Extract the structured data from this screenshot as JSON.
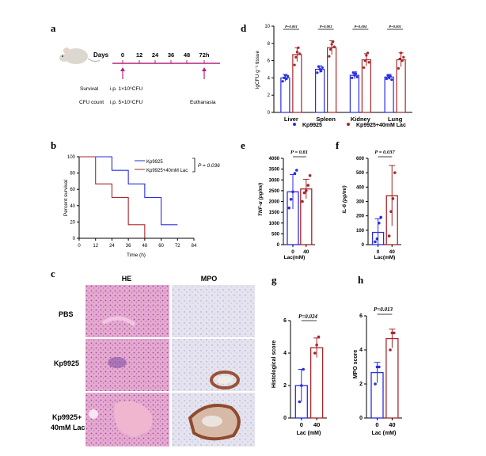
{
  "panels": {
    "a": {
      "letter": "a",
      "days_label": "Days",
      "days": [
        "0",
        "12",
        "24",
        "36",
        "48",
        "72h"
      ],
      "survival_label": "Survival",
      "survival_dose": "i.p.  1×10⁶CFU",
      "cfu_label": "CFU count",
      "cfu_dose": "i.p.  5×10⁵CFU",
      "euthanasia_label": "Euthanasia"
    },
    "b": {
      "letter": "b",
      "ylabel": "Percent survival",
      "xlabel": "Time (h)",
      "p_value": "P = 0.036",
      "legend": [
        "Kp9925",
        "Kp9925+40mM Lac"
      ],
      "x_ticks": [
        "0",
        "12",
        "24",
        "36",
        "48",
        "60",
        "72",
        "84"
      ],
      "y_ticks": [
        "0",
        "20",
        "40",
        "60",
        "80",
        "100"
      ]
    },
    "c": {
      "letter": "c",
      "col_he": "HE",
      "col_mpo": "MPO",
      "row_pbs": "PBS",
      "row_kp": "Kp9925",
      "row_lac_1": "Kp9925+",
      "row_lac_2": "40mM Lac"
    },
    "d": {
      "letter": "d",
      "ylabel": "lgCFU g⁻¹ tissue",
      "legend": [
        "Kp9925",
        "Kp9925+40mM Lac"
      ]
    },
    "e": {
      "letter": "e",
      "ylabel": "TNF-α (pg/ml)",
      "xlabel": "Lac(mM)",
      "p_value": "P = 0.81"
    },
    "f": {
      "letter": "f",
      "ylabel": "IL-6 (pg/ml)",
      "xlabel": "Lac(mM)",
      "p_value": "P = 0.037"
    },
    "g": {
      "letter": "g",
      "ylabel": "Histological score",
      "xlabel": "Lac (mM)",
      "p_value": "P=0.024"
    },
    "h": {
      "letter": "h",
      "ylabel": "MPO score",
      "xlabel": "Lac (mM)",
      "p_value": "P=0.013"
    }
  },
  "colors": {
    "blue": "#2a2ee0",
    "red": "#a8262a"
  },
  "chart_data": [
    {
      "id": "b",
      "type": "line",
      "title": "",
      "xlabel": "Time (h)",
      "ylabel": "Percent survival",
      "xlim": [
        0,
        84
      ],
      "ylim": [
        0,
        100
      ],
      "series": [
        {
          "name": "Kp9925",
          "x": [
            0,
            12,
            24,
            36,
            48,
            60,
            72
          ],
          "y": [
            100,
            100,
            83.3,
            66.7,
            50,
            16.7,
            16.7
          ]
        },
        {
          "name": "Kp9925+40mM Lac",
          "x": [
            0,
            12,
            24,
            36,
            48
          ],
          "y": [
            100,
            66.7,
            50,
            16.7,
            0
          ]
        }
      ]
    },
    {
      "id": "d",
      "type": "bar",
      "xlabel": "",
      "ylabel": "lgCFU g⁻¹ tissue",
      "categories": [
        "Liver",
        "Spleen",
        "Kidney",
        "Lung"
      ],
      "ylim": [
        0,
        10
      ],
      "y_ticks": [
        "0",
        "2",
        "4",
        "6",
        "8",
        "10"
      ],
      "p_values": [
        "P=0.001",
        "P=0.003",
        "P=0.004",
        "P=0.001"
      ],
      "series": [
        {
          "name": "Kp9925",
          "values": [
            4.0,
            5.0,
            4.3,
            4.1
          ],
          "err": [
            0.4,
            0.4,
            0.4,
            0.3
          ],
          "points": [
            [
              3.6,
              4.0,
              4.3,
              3.9,
              4.2
            ],
            [
              4.6,
              5.3,
              5.0,
              4.8,
              5.2
            ],
            [
              4.0,
              4.6,
              4.3,
              4.5,
              4.1
            ],
            [
              3.9,
              4.3,
              4.0,
              4.2,
              3.8
            ]
          ]
        },
        {
          "name": "Kp9925+40mM Lac",
          "values": [
            6.7,
            7.5,
            6.1,
            6.1
          ],
          "err": [
            0.8,
            0.8,
            0.7,
            0.8
          ],
          "points": [
            [
              5.5,
              6.4,
              7.0,
              7.5,
              6.8
            ],
            [
              6.5,
              7.3,
              7.9,
              8.2,
              7.6
            ],
            [
              5.2,
              6.0,
              6.6,
              6.9,
              5.8
            ],
            [
              5.1,
              6.2,
              6.9,
              6.0,
              6.4
            ]
          ]
        }
      ]
    },
    {
      "id": "e",
      "type": "bar",
      "ylabel": "TNF-α (pg/ml)",
      "xlabel": "Lac(mM)",
      "categories": [
        "0",
        "40"
      ],
      "ylim": [
        0,
        4000
      ],
      "y_ticks": [
        "0",
        "500",
        "1000",
        "1500",
        "2000",
        "2500",
        "3000",
        "3500",
        "4000"
      ],
      "values": [
        2450,
        2580
      ],
      "err": [
        800,
        450
      ],
      "points": [
        [
          1700,
          2100,
          2450,
          3300,
          3450
        ],
        [
          2000,
          2400,
          2500,
          2750,
          3200
        ]
      ]
    },
    {
      "id": "f",
      "type": "bar",
      "ylabel": "IL-6 (pg/ml)",
      "xlabel": "Lac(mM)",
      "categories": [
        "0",
        "40"
      ],
      "ylim": [
        0,
        600
      ],
      "y_ticks": [
        "0",
        "100",
        "200",
        "300",
        "400",
        "500",
        "600"
      ],
      "values": [
        85,
        340
      ],
      "err": [
        95,
        210
      ],
      "points": [
        [
          20,
          40,
          150,
          190
        ],
        [
          60,
          230,
          320,
          500
        ]
      ]
    },
    {
      "id": "g",
      "type": "bar",
      "ylabel": "Histological score",
      "xlabel": "Lac (mM)",
      "categories": [
        "0",
        "40"
      ],
      "ylim": [
        0,
        6
      ],
      "y_ticks": [
        "0",
        "2",
        "4",
        "6"
      ],
      "values": [
        2.0,
        4.33
      ],
      "err": [
        1.0,
        0.6
      ],
      "points": [
        [
          1,
          2,
          3
        ],
        [
          4,
          4.5,
          5
        ]
      ]
    },
    {
      "id": "h",
      "type": "bar",
      "ylabel": "MPO score",
      "xlabel": "Lac (mM)",
      "categories": [
        "0",
        "40"
      ],
      "ylim": [
        0,
        6
      ],
      "y_ticks": [
        "0",
        "2",
        "4",
        "6"
      ],
      "values": [
        2.67,
        4.67
      ],
      "err": [
        0.6,
        0.55
      ],
      "points": [
        [
          2,
          3,
          3
        ],
        [
          4,
          5,
          5
        ]
      ]
    }
  ]
}
